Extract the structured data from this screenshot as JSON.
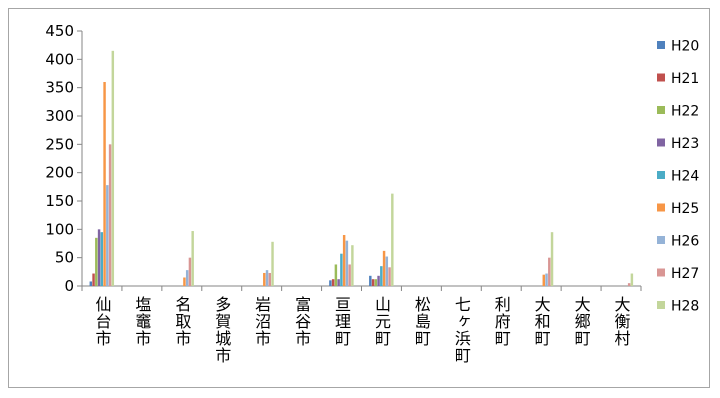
{
  "chart_data": {
    "type": "bar",
    "title": "",
    "xlabel": "",
    "ylabel": "",
    "ylim": [
      0,
      450
    ],
    "yticks": [
      0,
      50,
      100,
      150,
      200,
      250,
      300,
      350,
      400,
      450
    ],
    "grid": false,
    "legend_position": "right",
    "categories": [
      "仙台市",
      "塩竈市",
      "名取市",
      "多賀城市",
      "岩沼市",
      "富谷市",
      "亘理町",
      "山元町",
      "松島町",
      "七ヶ浜町",
      "利府町",
      "大和町",
      "大郷町",
      "大衡村"
    ],
    "series": [
      {
        "name": "H20",
        "color": "#4f81bd",
        "values": [
          8,
          0,
          0,
          0,
          0,
          0,
          10,
          18,
          0,
          0,
          0,
          0,
          0,
          0
        ]
      },
      {
        "name": "H21",
        "color": "#c0504d",
        "values": [
          22,
          0,
          0,
          0,
          0,
          0,
          12,
          12,
          0,
          0,
          0,
          0,
          0,
          0
        ]
      },
      {
        "name": "H22",
        "color": "#9bbb59",
        "values": [
          85,
          0,
          0,
          0,
          0,
          0,
          38,
          12,
          0,
          0,
          0,
          0,
          0,
          0
        ]
      },
      {
        "name": "H23",
        "color": "#8064a2",
        "values": [
          100,
          0,
          0,
          0,
          0,
          0,
          12,
          18,
          0,
          0,
          0,
          0,
          0,
          0
        ]
      },
      {
        "name": "H24",
        "color": "#4bacc6",
        "values": [
          95,
          0,
          0,
          0,
          0,
          0,
          57,
          35,
          0,
          0,
          0,
          0,
          0,
          0
        ]
      },
      {
        "name": "H25",
        "color": "#f79646",
        "values": [
          360,
          0,
          15,
          0,
          23,
          0,
          90,
          62,
          0,
          0,
          0,
          20,
          0,
          0
        ]
      },
      {
        "name": "H26",
        "color": "#95b3d7",
        "values": [
          178,
          0,
          28,
          0,
          28,
          0,
          80,
          52,
          0,
          0,
          0,
          22,
          0,
          0
        ]
      },
      {
        "name": "H27",
        "color": "#d99694",
        "values": [
          250,
          0,
          50,
          0,
          23,
          0,
          38,
          33,
          0,
          0,
          0,
          50,
          0,
          5
        ]
      },
      {
        "name": "H28",
        "color": "#c3d69b",
        "values": [
          415,
          0,
          97,
          0,
          78,
          0,
          72,
          163,
          0,
          0,
          0,
          95,
          0,
          22
        ]
      }
    ]
  }
}
